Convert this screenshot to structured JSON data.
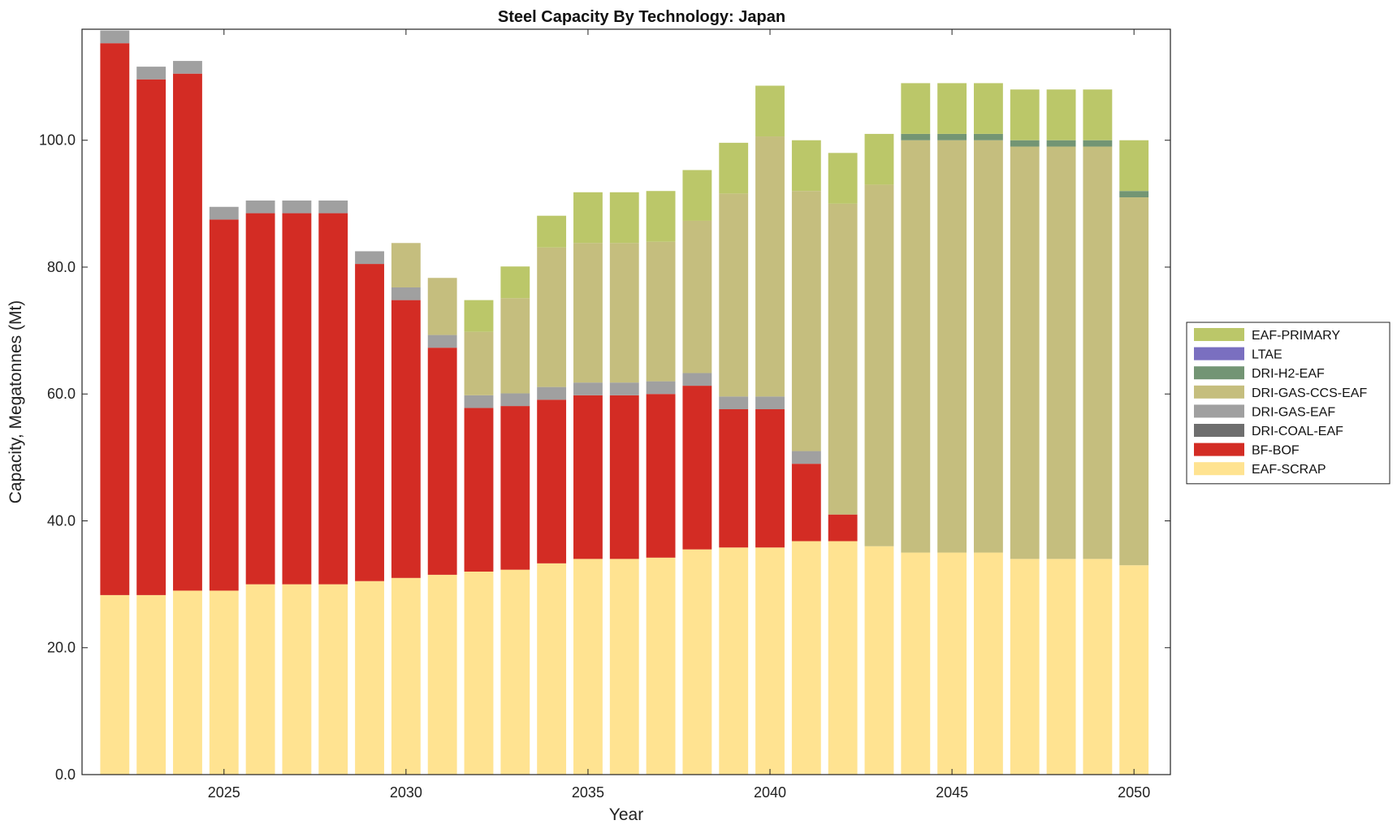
{
  "chart_data": {
    "type": "bar",
    "stacked": true,
    "title": "Steel Capacity By Technology: Japan",
    "xlabel": "Year",
    "ylabel": "Capacity, Megatonnes (Mt)",
    "ylim": [
      0,
      117.5
    ],
    "xlim": [
      2021.1,
      2051.0
    ],
    "y_ticks": [
      0,
      20,
      40,
      60,
      80,
      100
    ],
    "y_tick_labels": [
      "0.0",
      "20.0",
      "40.0",
      "60.0",
      "80.0",
      "100.0"
    ],
    "x_ticks": [
      2025,
      2030,
      2035,
      2040,
      2045,
      2050
    ],
    "x_tick_labels": [
      "2025",
      "2030",
      "2035",
      "2040",
      "2045",
      "2050"
    ],
    "grid": false,
    "legend_position": "right",
    "categories": [
      2022,
      2023,
      2024,
      2025,
      2026,
      2027,
      2028,
      2029,
      2030,
      2031,
      2032,
      2033,
      2034,
      2035,
      2036,
      2037,
      2038,
      2039,
      2040,
      2041,
      2042,
      2043,
      2044,
      2045,
      2046,
      2047,
      2048,
      2049,
      2050
    ],
    "series": [
      {
        "name": "EAF-SCRAP",
        "color": "#FFE391",
        "values": [
          28.3,
          28.3,
          29,
          29,
          30,
          30,
          30,
          30.5,
          31,
          31.5,
          32,
          32.3,
          33.3,
          34,
          34,
          34.2,
          35.5,
          35.8,
          35.8,
          36.8,
          36.8,
          36,
          35,
          35,
          35,
          34,
          34,
          34,
          33
        ]
      },
      {
        "name": "BF-BOF",
        "color": "#D32C24",
        "values": [
          87,
          81.3,
          81.5,
          58.5,
          58.5,
          58.5,
          58.5,
          50,
          43.8,
          35.8,
          25.8,
          25.8,
          25.8,
          25.8,
          25.8,
          25.8,
          25.8,
          21.8,
          21.8,
          12.2,
          4.2,
          0,
          0,
          0,
          0,
          0,
          0,
          0,
          0
        ]
      },
      {
        "name": "DRI-COAL-EAF",
        "color": "#6E6E6E",
        "values": [
          0,
          0,
          0,
          0,
          0,
          0,
          0,
          0,
          0,
          0,
          0,
          0,
          0,
          0,
          0,
          0,
          0,
          0,
          0,
          0,
          0,
          0,
          0,
          0,
          0,
          0,
          0,
          0,
          0
        ]
      },
      {
        "name": "DRI-GAS-EAF",
        "color": "#A0A0A0",
        "values": [
          2,
          2,
          2,
          2,
          2,
          2,
          2,
          2,
          2,
          2,
          2,
          2,
          2,
          2,
          2,
          2,
          2,
          2,
          2,
          2,
          0,
          0,
          0,
          0,
          0,
          0,
          0,
          0,
          0
        ]
      },
      {
        "name": "DRI-GAS-CCS-EAF",
        "color": "#C5BE7E",
        "values": [
          0,
          0,
          0,
          0,
          0,
          0,
          0,
          0,
          7,
          9,
          10,
          15,
          22,
          22,
          22,
          22,
          24,
          32,
          41,
          41,
          49,
          57,
          65,
          65,
          65,
          65,
          65,
          65,
          58
        ]
      },
      {
        "name": "DRI-H2-EAF",
        "color": "#739574",
        "values": [
          0,
          0,
          0,
          0,
          0,
          0,
          0,
          0,
          0,
          0,
          0,
          0,
          0,
          0,
          0,
          0,
          0,
          0,
          0,
          0,
          0,
          0,
          1,
          1,
          1,
          1,
          1,
          1,
          1
        ]
      },
      {
        "name": "LTAE",
        "color": "#7A6FC0",
        "values": [
          0,
          0,
          0,
          0,
          0,
          0,
          0,
          0,
          0,
          0,
          0,
          0,
          0,
          0,
          0,
          0,
          0,
          0,
          0,
          0,
          0,
          0,
          0,
          0,
          0,
          0,
          0,
          0,
          0
        ]
      },
      {
        "name": "EAF-PRIMARY",
        "color": "#BBC769",
        "values": [
          0,
          0,
          0,
          0,
          0,
          0,
          0,
          0,
          0,
          0,
          5,
          5,
          5,
          8,
          8,
          8,
          8,
          8,
          8,
          8,
          8,
          8,
          8,
          8,
          8,
          8,
          8,
          8,
          8
        ]
      }
    ],
    "legend_order": [
      "EAF-PRIMARY",
      "LTAE",
      "DRI-H2-EAF",
      "DRI-GAS-CCS-EAF",
      "DRI-GAS-EAF",
      "DRI-COAL-EAF",
      "BF-BOF",
      "EAF-SCRAP"
    ]
  }
}
